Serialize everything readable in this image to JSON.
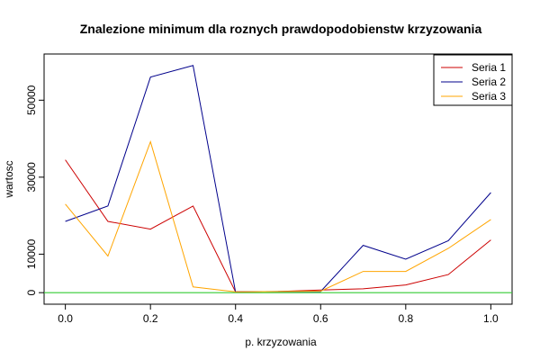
{
  "chart_data": {
    "type": "line",
    "title": "Znalezione minimum dla roznych prawdopodobienstw krzyzowania",
    "xlabel": "p. krzyzowania",
    "ylabel": "wartosc",
    "xlim": [
      -0.05,
      1.05
    ],
    "ylim": [
      -3000,
      62000
    ],
    "x": [
      0.0,
      0.1,
      0.2,
      0.3,
      0.4,
      0.5,
      0.6,
      0.7,
      0.8,
      0.9,
      1.0
    ],
    "x_ticks": [
      0.0,
      0.2,
      0.4,
      0.6,
      0.8,
      1.0
    ],
    "x_tick_labels": [
      "0.0",
      "0.2",
      "0.4",
      "0.6",
      "0.8",
      "1.0"
    ],
    "y_ticks": [
      0,
      10000,
      30000,
      50000
    ],
    "y_tick_labels": [
      "0",
      "10000",
      "30000",
      "50000"
    ],
    "series": [
      {
        "name": "Seria 1",
        "color": "#cc0000",
        "values": [
          34500,
          18500,
          16500,
          22500,
          200,
          300,
          700,
          1000,
          2000,
          4700,
          13700
        ]
      },
      {
        "name": "Seria 2",
        "color": "#00008b",
        "values": [
          18500,
          22500,
          56000,
          59000,
          200,
          300,
          300,
          12300,
          8700,
          13500,
          26000
        ]
      },
      {
        "name": "Seria 3",
        "color": "#ffa500",
        "values": [
          23000,
          9500,
          39200,
          1500,
          200,
          300,
          400,
          5500,
          5500,
          11500,
          19000
        ]
      }
    ],
    "hline": {
      "y": 0,
      "color": "#33cc33"
    },
    "legend": {
      "position": "top-right"
    },
    "grid": false
  }
}
